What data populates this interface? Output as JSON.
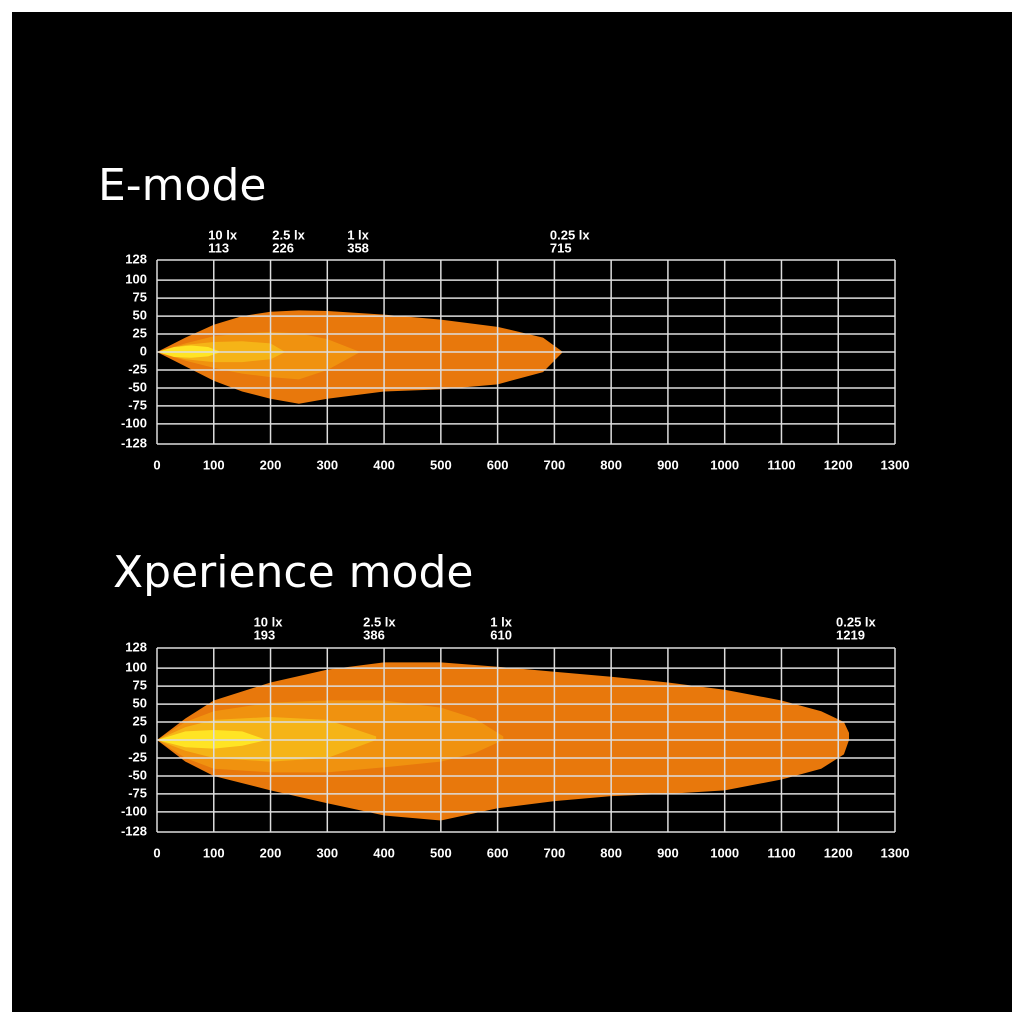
{
  "chart_data": [
    {
      "type": "isolux",
      "title": "E-mode",
      "xlim": [
        0,
        1300
      ],
      "ylim": [
        -128,
        128
      ],
      "xticks": [
        0,
        100,
        200,
        300,
        400,
        500,
        600,
        700,
        800,
        900,
        1000,
        1100,
        1200,
        1300
      ],
      "yticks": [
        128,
        100,
        75,
        50,
        25,
        0,
        -25,
        -50,
        -75,
        -100,
        -128
      ],
      "grid": true,
      "series": [
        {
          "name": "0.25 lx",
          "reach": 715,
          "color": "#e8780c",
          "x": [
            0,
            50,
            100,
            150,
            200,
            250,
            300,
            400,
            500,
            600,
            680,
            715
          ],
          "upper": [
            0,
            20,
            38,
            50,
            56,
            58,
            57,
            52,
            45,
            35,
            20,
            0
          ],
          "lower": [
            0,
            -20,
            -40,
            -55,
            -65,
            -72,
            -65,
            -55,
            -52,
            -45,
            -28,
            0
          ]
        },
        {
          "name": "1 lx",
          "reach": 358,
          "color": "#f0920f",
          "x": [
            0,
            50,
            100,
            150,
            200,
            250,
            300,
            358
          ],
          "upper": [
            0,
            12,
            22,
            26,
            28,
            26,
            18,
            0
          ],
          "lower": [
            0,
            -12,
            -22,
            -30,
            -35,
            -38,
            -25,
            0
          ]
        },
        {
          "name": "2.5 lx",
          "reach": 226,
          "color": "#f5b417",
          "x": [
            0,
            50,
            100,
            150,
            200,
            226
          ],
          "upper": [
            0,
            10,
            14,
            15,
            12,
            0
          ],
          "lower": [
            0,
            -10,
            -14,
            -14,
            -10,
            0
          ]
        },
        {
          "name": "10 lx",
          "reach": 113,
          "color": "#ffe424",
          "x": [
            0,
            30,
            60,
            90,
            113
          ],
          "upper": [
            0,
            7,
            9,
            7,
            0
          ],
          "lower": [
            0,
            -7,
            -8,
            -6,
            0
          ]
        }
      ]
    },
    {
      "type": "isolux",
      "title": "Xperience mode",
      "xlim": [
        0,
        1300
      ],
      "ylim": [
        -128,
        128
      ],
      "xticks": [
        0,
        100,
        200,
        300,
        400,
        500,
        600,
        700,
        800,
        900,
        1000,
        1100,
        1200,
        1300
      ],
      "yticks": [
        128,
        100,
        75,
        50,
        25,
        0,
        -25,
        -50,
        -75,
        -100,
        -128
      ],
      "grid": true,
      "series": [
        {
          "name": "0.25 lx",
          "reach": 1219,
          "color": "#e8780c",
          "x": [
            0,
            50,
            100,
            200,
            300,
            400,
            500,
            600,
            700,
            800,
            900,
            1000,
            1100,
            1170,
            1210,
            1219
          ],
          "upper": [
            0,
            30,
            55,
            80,
            98,
            108,
            108,
            102,
            95,
            88,
            80,
            70,
            55,
            40,
            25,
            10
          ],
          "lower": [
            0,
            -30,
            -50,
            -70,
            -88,
            -105,
            -112,
            -95,
            -85,
            -78,
            -75,
            -70,
            -55,
            -40,
            -20,
            0
          ]
        },
        {
          "name": "1 lx",
          "reach": 610,
          "color": "#f0920f",
          "x": [
            0,
            50,
            100,
            200,
            300,
            400,
            500,
            560,
            610
          ],
          "upper": [
            0,
            25,
            40,
            52,
            55,
            55,
            45,
            30,
            5
          ],
          "lower": [
            0,
            -25,
            -40,
            -45,
            -45,
            -38,
            -30,
            -18,
            0
          ]
        },
        {
          "name": "2.5 lx",
          "reach": 386,
          "color": "#f5b417",
          "x": [
            0,
            50,
            100,
            200,
            300,
            386
          ],
          "upper": [
            0,
            18,
            28,
            32,
            28,
            5
          ],
          "lower": [
            0,
            -15,
            -25,
            -30,
            -25,
            0
          ]
        },
        {
          "name": "10 lx",
          "reach": 193,
          "color": "#ffe424",
          "x": [
            0,
            50,
            100,
            150,
            193
          ],
          "upper": [
            0,
            12,
            14,
            12,
            0
          ],
          "lower": [
            0,
            -10,
            -12,
            -8,
            0
          ]
        }
      ]
    }
  ]
}
